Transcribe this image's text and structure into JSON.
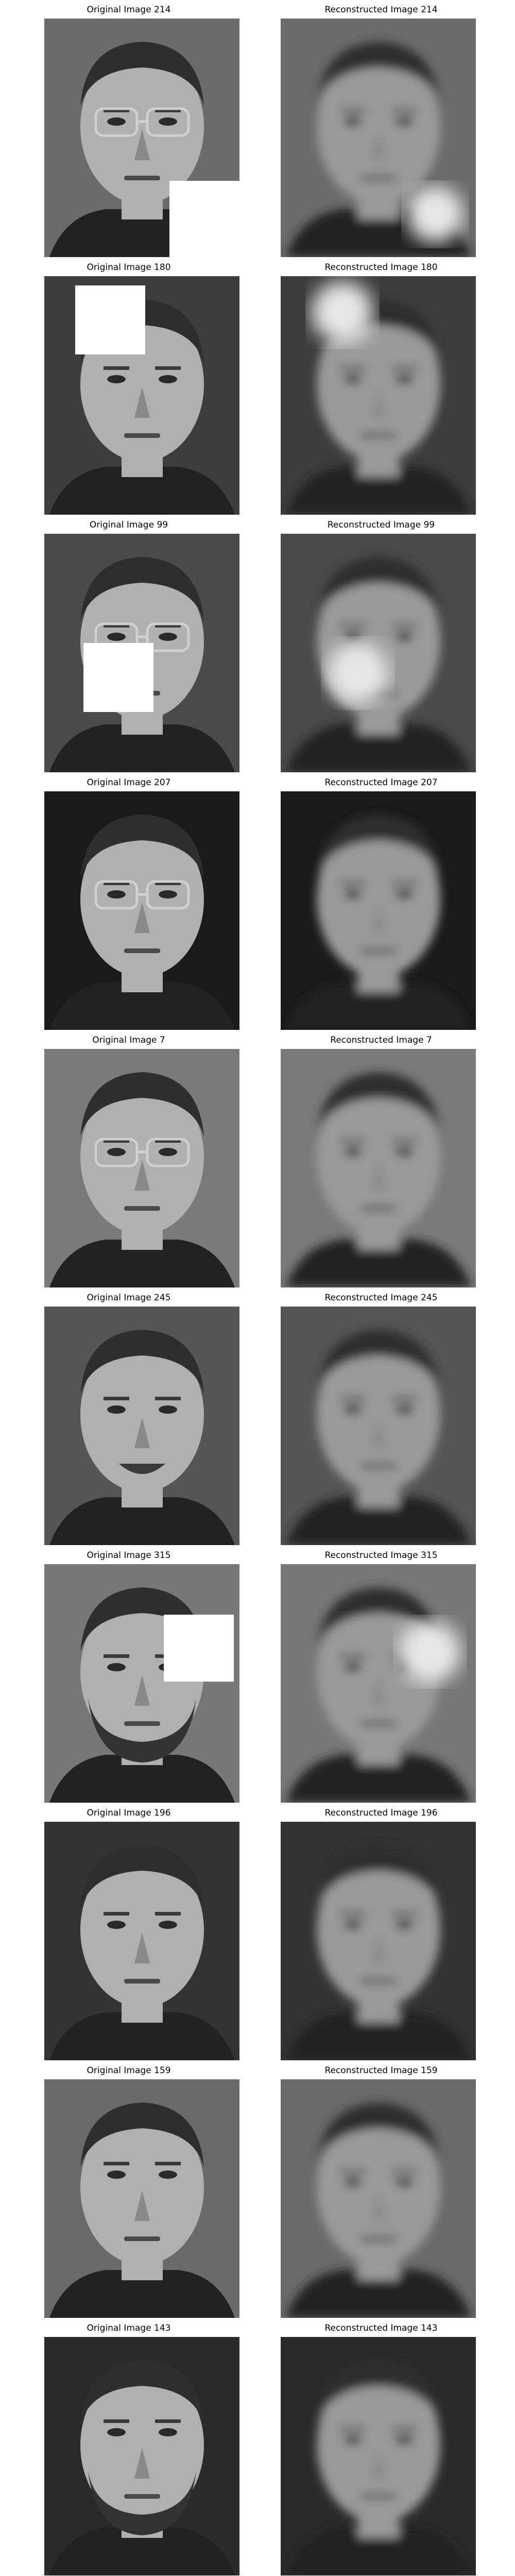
{
  "rows": [
    {
      "original": {
        "title": "Original Image 214",
        "face": "face-with-glasses",
        "occluded": true
      },
      "reconstructed": {
        "title": "Reconstructed Image 214",
        "face": "blurry-face"
      }
    },
    {
      "original": {
        "title": "Original Image 180",
        "face": "face",
        "occluded": true
      },
      "reconstructed": {
        "title": "Reconstructed Image 180",
        "face": "blurry-face"
      }
    },
    {
      "original": {
        "title": "Original Image 99",
        "face": "face-with-glasses",
        "occluded": true
      },
      "reconstructed": {
        "title": "Reconstructed Image 99",
        "face": "blurry-face"
      }
    },
    {
      "original": {
        "title": "Original Image 207",
        "face": "face-with-glasses",
        "occluded": false
      },
      "reconstructed": {
        "title": "Reconstructed Image 207",
        "face": "blurry-face"
      }
    },
    {
      "original": {
        "title": "Original Image 7",
        "face": "face-with-glasses",
        "occluded": false
      },
      "reconstructed": {
        "title": "Reconstructed Image 7",
        "face": "blurry-face"
      }
    },
    {
      "original": {
        "title": "Original Image 245",
        "face": "smiling-face",
        "occluded": false
      },
      "reconstructed": {
        "title": "Reconstructed Image 245",
        "face": "blurry-face"
      }
    },
    {
      "original": {
        "title": "Original Image 315",
        "face": "bearded-face",
        "occluded": true
      },
      "reconstructed": {
        "title": "Reconstructed Image 315",
        "face": "blurry-face"
      }
    },
    {
      "original": {
        "title": "Original Image 196",
        "face": "face",
        "occluded": false
      },
      "reconstructed": {
        "title": "Reconstructed Image 196",
        "face": "blurry-face"
      }
    },
    {
      "original": {
        "title": "Original Image 159",
        "face": "face-looking-up",
        "occluded": false
      },
      "reconstructed": {
        "title": "Reconstructed Image 159",
        "face": "blurry-face"
      }
    },
    {
      "original": {
        "title": "Original Image 143",
        "face": "bearded-face-looking-up",
        "occluded": false
      },
      "reconstructed": {
        "title": "Reconstructed Image 143",
        "face": "blurry-face"
      }
    }
  ],
  "colors": {
    "background": "#ffffff",
    "occlusion": "#ffffff"
  }
}
